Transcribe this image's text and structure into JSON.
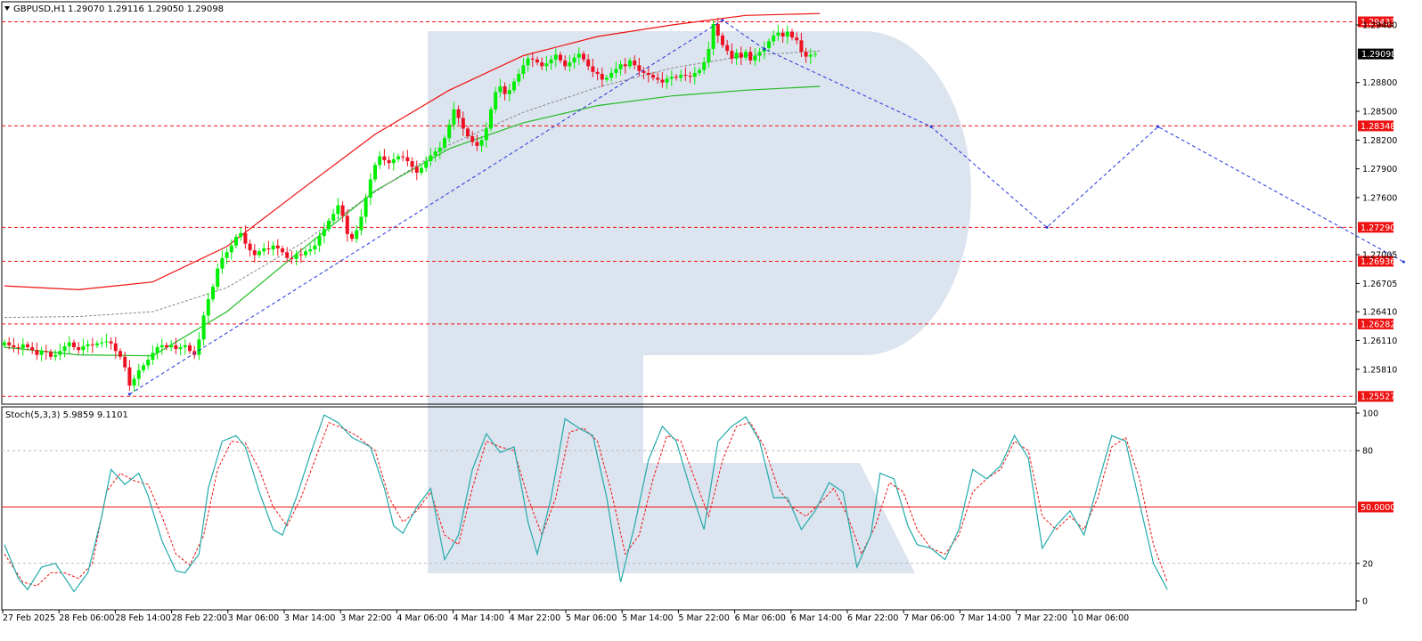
{
  "header": {
    "symbol": "GBPUSD,H1",
    "ohlc": "1.29070 1.29116 1.29050 1.29098"
  },
  "colors": {
    "bull": "#00ee00",
    "bear": "#ee1122",
    "level_line": "#ee1111",
    "upper_band": "#ee1111",
    "lower_ma": "#22bb22",
    "mid_ma": "#888888",
    "trend": "#2233dd",
    "stoch_main": "#22aaaa",
    "stoch_signal": "#ee1111",
    "watermark": "#dce4ef"
  },
  "price_axis": {
    "ticks": [
      "1.29400",
      "1.28800",
      "1.28500",
      "1.28200",
      "1.27900",
      "1.27600",
      "1.27005",
      "1.26705",
      "1.26410",
      "1.26110",
      "1.25810"
    ],
    "current_label": "1.29098",
    "current_value": 1.29098
  },
  "levels": [
    {
      "label": "1.29433",
      "value": 1.29433
    },
    {
      "label": "1.28348",
      "value": 1.28348
    },
    {
      "label": "1.27290",
      "value": 1.2729
    },
    {
      "label": "1.26936",
      "value": 1.26936
    },
    {
      "label": "1.26282",
      "value": 1.26282
    },
    {
      "label": "1.25527",
      "value": 1.25527
    }
  ],
  "time_axis": [
    "27 Feb 2025",
    "28 Feb 06:00",
    "28 Feb 14:00",
    "28 Feb 22:00",
    "3 Mar 06:00",
    "3 Mar 14:00",
    "3 Mar 22:00",
    "4 Mar 06:00",
    "4 Mar 14:00",
    "4 Mar 22:00",
    "5 Mar 06:00",
    "5 Mar 14:00",
    "5 Mar 22:00",
    "6 Mar 06:00",
    "6 Mar 14:00",
    "6 Mar 22:00",
    "7 Mar 06:00",
    "7 Mar 14:00",
    "7 Mar 22:00",
    "10 Mar 06:00"
  ],
  "stoch": {
    "title": "Stoch(5,3,3) 5.9859 9.1101",
    "level_label": "50.0000",
    "ticks": [
      "100",
      "80",
      "20",
      "0"
    ]
  },
  "chart_data": {
    "type": "candlestick",
    "timeframe": "H1",
    "ylim": [
      1.2552,
      1.2954
    ],
    "closes": [
      1.2609,
      1.2606,
      1.2604,
      1.2603,
      1.2607,
      1.2604,
      1.2601,
      1.2596,
      1.26,
      1.2599,
      1.2594,
      1.2596,
      1.26,
      1.2605,
      1.2609,
      1.2604,
      1.2601,
      1.2605,
      1.2607,
      1.2606,
      1.2608,
      1.2609,
      1.261,
      1.2608,
      1.26,
      1.2594,
      1.2583,
      1.2564,
      1.2571,
      1.258,
      1.2585,
      1.2591,
      1.2598,
      1.2604,
      1.2606,
      1.2604,
      1.2606,
      1.2602,
      1.2604,
      1.2606,
      1.26,
      1.2596,
      1.2612,
      1.2637,
      1.2654,
      1.2667,
      1.2686,
      1.2697,
      1.2703,
      1.271,
      1.2719,
      1.2723,
      1.2712,
      1.2705,
      1.27,
      1.2704,
      1.2707,
      1.2706,
      1.271,
      1.2707,
      1.2703,
      1.2697,
      1.2696,
      1.2701,
      1.27,
      1.2704,
      1.2706,
      1.271,
      1.272,
      1.2727,
      1.2736,
      1.2743,
      1.2752,
      1.2741,
      1.2722,
      1.2717,
      1.2726,
      1.274,
      1.276,
      1.2779,
      1.2794,
      1.2803,
      1.2799,
      1.2796,
      1.28,
      1.2803,
      1.2802,
      1.2798,
      1.2792,
      1.2786,
      1.2791,
      1.2798,
      1.2804,
      1.2808,
      1.2812,
      1.2822,
      1.2836,
      1.2852,
      1.2843,
      1.2832,
      1.2824,
      1.2818,
      1.2814,
      1.282,
      1.2832,
      1.2852,
      1.287,
      1.2876,
      1.2868,
      1.2872,
      1.2881,
      1.2889,
      1.2898,
      1.2905,
      1.2904,
      1.2901,
      1.2897,
      1.29,
      1.2904,
      1.2909,
      1.2903,
      1.2897,
      1.2901,
      1.2906,
      1.291,
      1.2904,
      1.2897,
      1.2891,
      1.2889,
      1.2883,
      1.2885,
      1.289,
      1.2894,
      1.2899,
      1.2897,
      1.2903,
      1.2898,
      1.2892,
      1.289,
      1.2888,
      1.2885,
      1.2883,
      1.288,
      1.2884,
      1.2886,
      1.2885,
      1.2888,
      1.2887,
      1.2886,
      1.289,
      1.2893,
      1.2901,
      1.2915,
      1.2941,
      1.2929,
      1.2919,
      1.2913,
      1.2905,
      1.2911,
      1.2906,
      1.2912,
      1.2903,
      1.2908,
      1.2912,
      1.2916,
      1.2923,
      1.2929,
      1.2932,
      1.2928,
      1.2933,
      1.2927,
      1.2924,
      1.2912,
      1.2907,
      1.2909,
      1.291
    ],
    "upper_band": [
      [
        0,
        1.2668
      ],
      [
        16,
        1.2664
      ],
      [
        32,
        1.2672
      ],
      [
        48,
        1.2709
      ],
      [
        64,
        1.2768
      ],
      [
        80,
        1.2826
      ],
      [
        96,
        1.2872
      ],
      [
        112,
        1.2908
      ],
      [
        128,
        1.2928
      ],
      [
        144,
        1.294
      ],
      [
        160,
        1.295
      ],
      [
        176,
        1.2952
      ]
    ],
    "lower_ma": [
      [
        0,
        1.2604
      ],
      [
        16,
        1.2596
      ],
      [
        32,
        1.2595
      ],
      [
        48,
        1.2641
      ],
      [
        64,
        1.2705
      ],
      [
        80,
        1.2767
      ],
      [
        96,
        1.2811
      ],
      [
        112,
        1.2838
      ],
      [
        128,
        1.2856
      ],
      [
        144,
        1.2866
      ],
      [
        160,
        1.2872
      ],
      [
        176,
        1.2876
      ]
    ],
    "mid_ma": [
      [
        0,
        1.2635
      ],
      [
        16,
        1.2636
      ],
      [
        32,
        1.2641
      ],
      [
        48,
        1.2666
      ],
      [
        64,
        1.2712
      ],
      [
        80,
        1.2766
      ],
      [
        96,
        1.2815
      ],
      [
        112,
        1.2849
      ],
      [
        128,
        1.2875
      ],
      [
        144,
        1.2895
      ],
      [
        160,
        1.2908
      ],
      [
        176,
        1.2913
      ]
    ],
    "trend_path": [
      [
        27,
        1.2555
      ],
      [
        155,
        1.2945
      ],
      [
        164,
        1.2915
      ],
      [
        200,
        1.2834
      ],
      [
        225,
        1.2729
      ],
      [
        249,
        1.2834
      ],
      [
        302,
        1.2693
      ]
    ],
    "stoch_main": [
      [
        0,
        30
      ],
      [
        3,
        12
      ],
      [
        5,
        6
      ],
      [
        8,
        18
      ],
      [
        11,
        20
      ],
      [
        15,
        5
      ],
      [
        18,
        15
      ],
      [
        21,
        45
      ],
      [
        23,
        70
      ],
      [
        26,
        62
      ],
      [
        29,
        68
      ],
      [
        31,
        56
      ],
      [
        34,
        32
      ],
      [
        37,
        16
      ],
      [
        39,
        15
      ],
      [
        42,
        25
      ],
      [
        44,
        60
      ],
      [
        47,
        85
      ],
      [
        50,
        88
      ],
      [
        52,
        82
      ],
      [
        55,
        58
      ],
      [
        58,
        38
      ],
      [
        60,
        35
      ],
      [
        63,
        55
      ],
      [
        66,
        78
      ],
      [
        69,
        99
      ],
      [
        72,
        95
      ],
      [
        75,
        87
      ],
      [
        79,
        82
      ],
      [
        82,
        60
      ],
      [
        84,
        40
      ],
      [
        86,
        36
      ],
      [
        89,
        50
      ],
      [
        92,
        60
      ],
      [
        95,
        22
      ],
      [
        98,
        35
      ],
      [
        101,
        70
      ],
      [
        104,
        89
      ],
      [
        107,
        79
      ],
      [
        110,
        82
      ],
      [
        113,
        42
      ],
      [
        115,
        25
      ],
      [
        118,
        55
      ],
      [
        121,
        97
      ],
      [
        124,
        92
      ],
      [
        127,
        88
      ],
      [
        130,
        55
      ],
      [
        133,
        10
      ],
      [
        136,
        40
      ],
      [
        139,
        75
      ],
      [
        142,
        93
      ],
      [
        145,
        85
      ],
      [
        148,
        60
      ],
      [
        151,
        38
      ],
      [
        154,
        85
      ],
      [
        157,
        93
      ],
      [
        160,
        98
      ],
      [
        163,
        85
      ],
      [
        166,
        55
      ],
      [
        169,
        55
      ],
      [
        172,
        38
      ],
      [
        175,
        48
      ],
      [
        178,
        63
      ],
      [
        181,
        58
      ],
      [
        184,
        18
      ],
      [
        187,
        35
      ],
      [
        189,
        68
      ],
      [
        192,
        65
      ],
      [
        195,
        40
      ],
      [
        197,
        30
      ],
      [
        200,
        28
      ],
      [
        203,
        22
      ],
      [
        206,
        38
      ],
      [
        209,
        70
      ],
      [
        212,
        65
      ],
      [
        215,
        72
      ],
      [
        218,
        88
      ],
      [
        221,
        76
      ],
      [
        224,
        28
      ],
      [
        227,
        40
      ],
      [
        230,
        48
      ],
      [
        233,
        35
      ],
      [
        236,
        62
      ],
      [
        239,
        88
      ],
      [
        242,
        85
      ],
      [
        245,
        52
      ],
      [
        248,
        20
      ],
      [
        251,
        6
      ]
    ],
    "stoch_signal": [
      [
        0,
        25
      ],
      [
        4,
        10
      ],
      [
        7,
        8
      ],
      [
        10,
        15
      ],
      [
        13,
        15
      ],
      [
        16,
        12
      ],
      [
        19,
        20
      ],
      [
        22,
        58
      ],
      [
        25,
        68
      ],
      [
        28,
        64
      ],
      [
        31,
        62
      ],
      [
        34,
        45
      ],
      [
        37,
        25
      ],
      [
        40,
        19
      ],
      [
        43,
        35
      ],
      [
        46,
        70
      ],
      [
        49,
        85
      ],
      [
        52,
        84
      ],
      [
        55,
        70
      ],
      [
        58,
        50
      ],
      [
        61,
        40
      ],
      [
        64,
        55
      ],
      [
        67,
        75
      ],
      [
        70,
        95
      ],
      [
        73,
        92
      ],
      [
        76,
        88
      ],
      [
        80,
        80
      ],
      [
        83,
        55
      ],
      [
        86,
        42
      ],
      [
        89,
        48
      ],
      [
        92,
        58
      ],
      [
        95,
        35
      ],
      [
        98,
        30
      ],
      [
        101,
        60
      ],
      [
        104,
        85
      ],
      [
        107,
        82
      ],
      [
        110,
        80
      ],
      [
        113,
        55
      ],
      [
        116,
        35
      ],
      [
        119,
        55
      ],
      [
        122,
        90
      ],
      [
        125,
        92
      ],
      [
        128,
        85
      ],
      [
        131,
        58
      ],
      [
        134,
        25
      ],
      [
        137,
        35
      ],
      [
        140,
        65
      ],
      [
        143,
        88
      ],
      [
        146,
        85
      ],
      [
        149,
        65
      ],
      [
        152,
        45
      ],
      [
        155,
        75
      ],
      [
        158,
        93
      ],
      [
        161,
        95
      ],
      [
        164,
        82
      ],
      [
        167,
        60
      ],
      [
        170,
        50
      ],
      [
        173,
        45
      ],
      [
        176,
        52
      ],
      [
        179,
        60
      ],
      [
        182,
        45
      ],
      [
        185,
        25
      ],
      [
        188,
        40
      ],
      [
        191,
        63
      ],
      [
        194,
        58
      ],
      [
        197,
        38
      ],
      [
        200,
        28
      ],
      [
        203,
        25
      ],
      [
        206,
        35
      ],
      [
        209,
        58
      ],
      [
        212,
        65
      ],
      [
        215,
        70
      ],
      [
        218,
        85
      ],
      [
        221,
        80
      ],
      [
        224,
        45
      ],
      [
        227,
        38
      ],
      [
        230,
        45
      ],
      [
        233,
        38
      ],
      [
        236,
        55
      ],
      [
        239,
        82
      ],
      [
        242,
        87
      ],
      [
        245,
        65
      ],
      [
        248,
        30
      ],
      [
        251,
        10
      ]
    ],
    "stoch_levels": [
      80,
      50,
      20
    ],
    "stoch_ylim": [
      0,
      100
    ]
  }
}
